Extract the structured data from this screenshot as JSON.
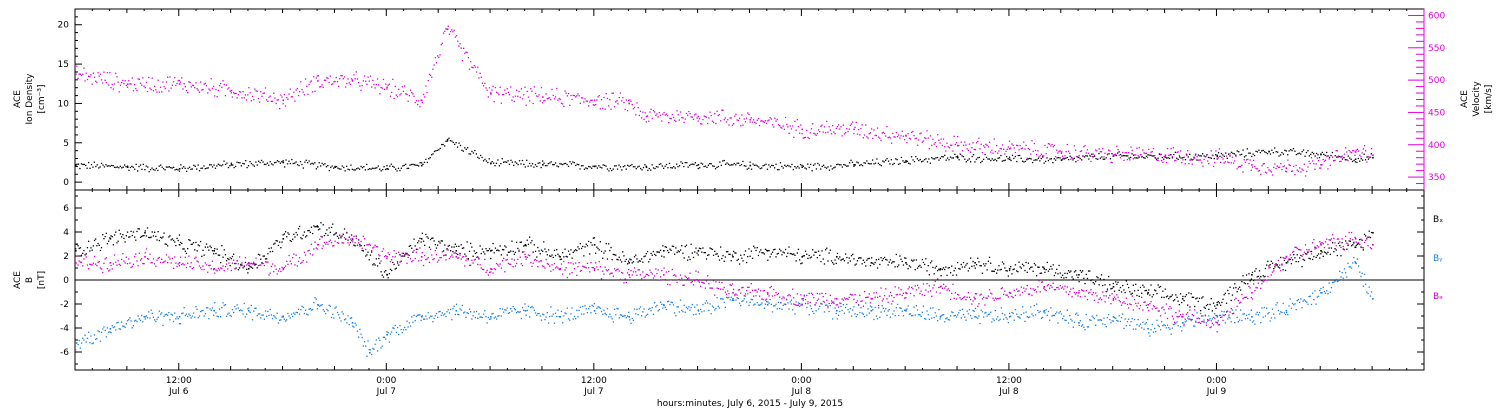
{
  "colors": {
    "density": "#000000",
    "velocity": "#e000e0",
    "bx": "#000000",
    "by": "#1a80e0",
    "bz": "#d000d0",
    "axis": "#000000"
  },
  "chart_data": [
    {
      "type": "scatter",
      "panel": "top",
      "ylabel_left": [
        "ACE",
        "Ion Density",
        "[cm⁻³]"
      ],
      "ylabel_right": [
        "ACE",
        "Velocity",
        "[km/s]"
      ],
      "ylim_left": [
        -1,
        22
      ],
      "ylim_right": [
        330,
        610
      ],
      "yticks_left": [
        0,
        5,
        10,
        15,
        20
      ],
      "yticks_right": [
        350,
        400,
        450,
        500,
        550,
        600
      ],
      "x_unit": "hours since Jul 6 00:00",
      "xlim": [
        6,
        84
      ],
      "series": [
        {
          "name": "Ion Density",
          "axis": "left",
          "color_key": "density",
          "x": [
            6,
            9,
            12,
            15,
            18,
            21,
            24,
            26,
            27.5,
            30,
            33,
            36,
            39,
            42,
            45,
            48,
            51,
            54,
            57,
            60,
            63,
            66,
            69,
            72,
            75,
            78,
            80,
            81
          ],
          "y": [
            2.2,
            2.0,
            1.8,
            2.3,
            2.6,
            2.0,
            1.8,
            2.2,
            5.5,
            2.5,
            2.3,
            2.1,
            2.0,
            2.3,
            2.2,
            2.0,
            2.3,
            2.8,
            3.2,
            3.0,
            2.9,
            3.4,
            3.3,
            3.4,
            4.0,
            3.6,
            3.0,
            3.2
          ]
        },
        {
          "name": "Velocity",
          "axis": "right",
          "color_key": "velocity",
          "x": [
            6,
            9,
            12,
            15,
            18,
            20,
            22,
            24,
            26,
            27.5,
            30,
            33,
            36,
            38,
            39,
            42,
            45,
            48,
            51,
            54,
            57,
            60,
            63,
            66,
            69,
            72,
            74,
            76,
            78,
            80,
            81
          ],
          "y": [
            510,
            495,
            495,
            485,
            470,
            500,
            500,
            490,
            470,
            580,
            480,
            475,
            470,
            465,
            445,
            445,
            440,
            425,
            425,
            415,
            400,
            395,
            390,
            385,
            385,
            380,
            370,
            365,
            370,
            390,
            385
          ]
        }
      ]
    },
    {
      "type": "scatter",
      "panel": "bottom",
      "ylabel": [
        "ACE",
        "B",
        "[nT]"
      ],
      "ylim": [
        -7.5,
        7.5
      ],
      "yticks": [
        -6,
        -4,
        -2,
        0,
        2,
        4,
        6
      ],
      "x_unit": "hours since Jul 6 00:00",
      "xlim": [
        6,
        84
      ],
      "legend": [
        "Bₓ",
        "Bᵧ",
        "Bₔ"
      ],
      "series": [
        {
          "name": "Bx",
          "color_key": "bx",
          "x": [
            6,
            8,
            10,
            12,
            14,
            16,
            18,
            20,
            22,
            24,
            26,
            28,
            30,
            32,
            34,
            36,
            38,
            40,
            42,
            44,
            46,
            48,
            50,
            52,
            54,
            56,
            58,
            60,
            62,
            64,
            66,
            68,
            70,
            72,
            74,
            76,
            78,
            80,
            81
          ],
          "y": [
            2.5,
            3.5,
            4.0,
            3.0,
            2.5,
            1.0,
            3.5,
            4.5,
            3.5,
            0.5,
            3.5,
            2.5,
            2.5,
            3.0,
            2.0,
            3.0,
            1.5,
            2.5,
            2.5,
            2.0,
            2.5,
            2.0,
            2.0,
            1.5,
            1.5,
            1.0,
            1.5,
            1.0,
            1.0,
            0.5,
            -0.5,
            -1.0,
            -1.5,
            -2.0,
            0.5,
            1.5,
            2.5,
            2.8,
            4.0
          ]
        },
        {
          "name": "By",
          "color_key": "by",
          "x": [
            6,
            8,
            10,
            12,
            14,
            16,
            18,
            20,
            22,
            23,
            24,
            26,
            28,
            30,
            32,
            34,
            36,
            38,
            40,
            42,
            44,
            46,
            48,
            50,
            52,
            54,
            56,
            58,
            60,
            62,
            64,
            66,
            68,
            70,
            72,
            74,
            76,
            78,
            80,
            81
          ],
          "y": [
            -5.2,
            -4.0,
            -3.0,
            -3.0,
            -2.5,
            -2.5,
            -3.0,
            -2.0,
            -3.5,
            -6.0,
            -4.5,
            -3.0,
            -2.5,
            -3.0,
            -2.5,
            -3.0,
            -2.5,
            -3.0,
            -2.0,
            -2.5,
            -1.5,
            -2.0,
            -2.0,
            -2.5,
            -2.5,
            -2.5,
            -3.0,
            -3.0,
            -3.0,
            -2.5,
            -3.5,
            -3.0,
            -4.0,
            -3.5,
            -3.0,
            -3.0,
            -2.5,
            -1.0,
            1.5,
            -1.5
          ]
        },
        {
          "name": "Bz",
          "color_key": "bz",
          "x": [
            6,
            8,
            10,
            12,
            14,
            16,
            18,
            20,
            22,
            24,
            26,
            28,
            30,
            32,
            34,
            36,
            38,
            40,
            42,
            44,
            46,
            48,
            50,
            52,
            54,
            56,
            58,
            60,
            62,
            64,
            66,
            68,
            70,
            72,
            74,
            76,
            78,
            80,
            81
          ],
          "y": [
            1.5,
            1.5,
            2.0,
            1.5,
            1.0,
            1.5,
            1.0,
            3.0,
            3.5,
            2.0,
            2.0,
            2.0,
            1.0,
            2.0,
            1.0,
            1.0,
            0.5,
            0.5,
            0.0,
            -1.0,
            -1.0,
            -1.5,
            -1.5,
            -1.5,
            -1.0,
            -0.5,
            -1.5,
            -1.0,
            -0.5,
            -1.0,
            -1.5,
            -2.0,
            -3.0,
            -3.5,
            -1.0,
            2.0,
            3.0,
            3.5,
            3.0
          ]
        }
      ]
    }
  ],
  "x_axis": {
    "major_ticks": [
      {
        "hour": 12,
        "time": "12:00",
        "date": "Jul 6"
      },
      {
        "hour": 24,
        "time": "0:00",
        "date": "Jul 7"
      },
      {
        "hour": 36,
        "time": "12:00",
        "date": "Jul 7"
      },
      {
        "hour": 48,
        "time": "0:00",
        "date": "Jul 8"
      },
      {
        "hour": 60,
        "time": "12:00",
        "date": "Jul 8"
      },
      {
        "hour": 72,
        "time": "0:00",
        "date": "Jul 9"
      }
    ],
    "title": "hours:minutes, July  6, 2015 - July  9, 2015"
  }
}
